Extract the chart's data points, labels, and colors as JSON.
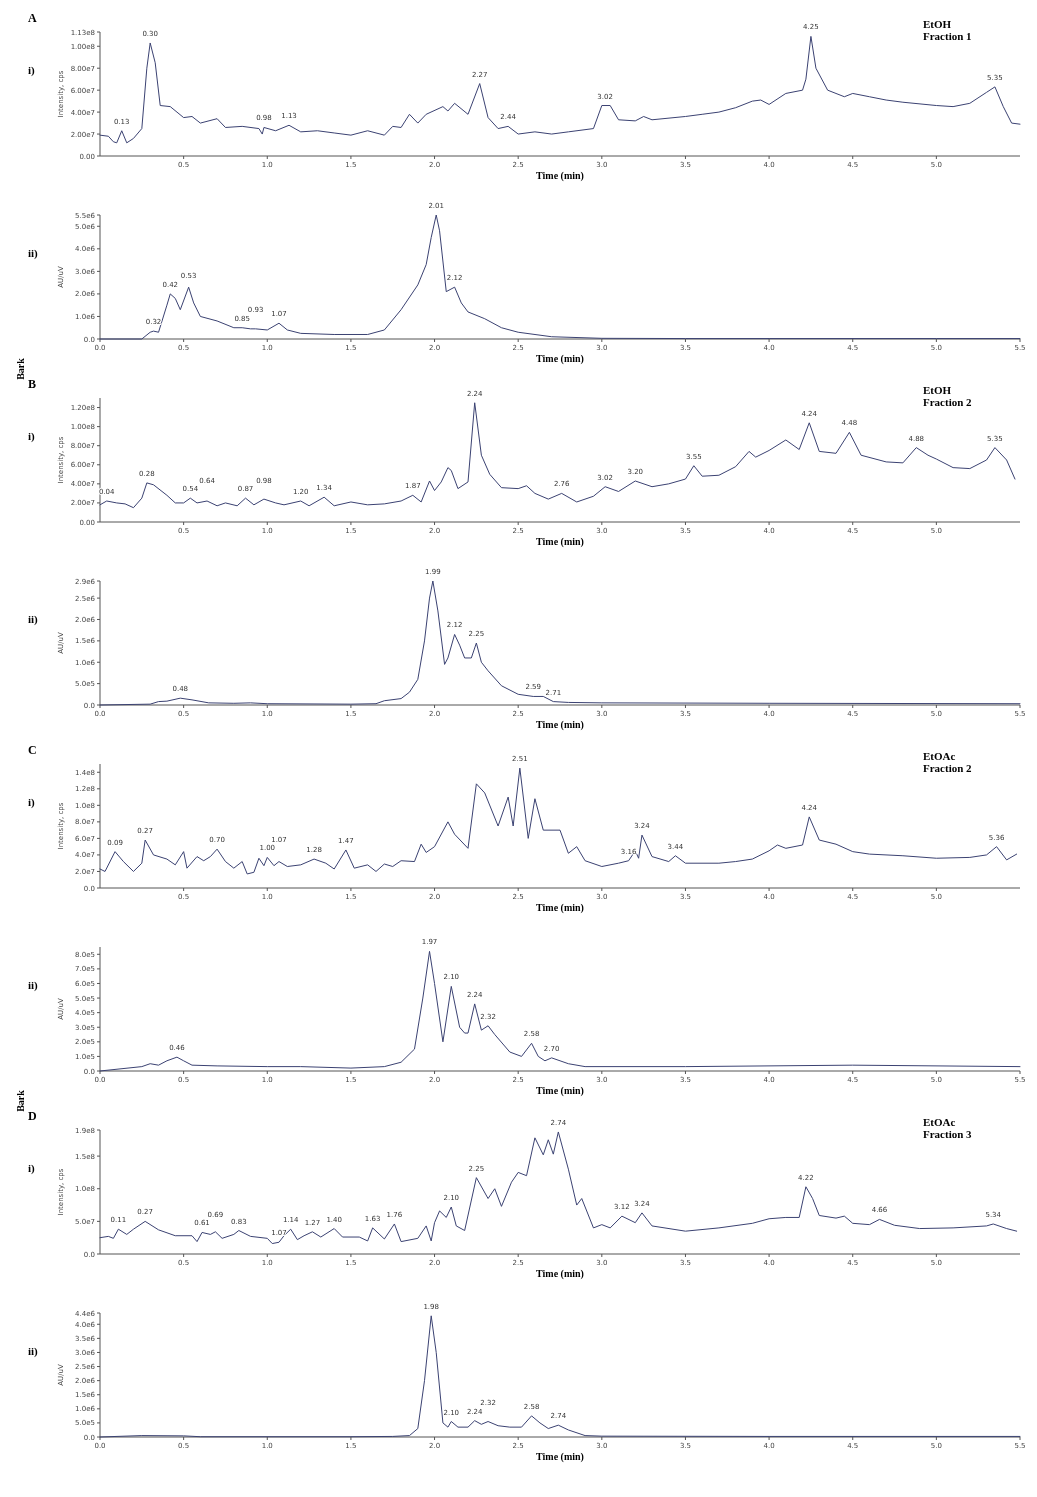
{
  "chart_data": [
    {
      "type": "line",
      "title": "A",
      "subtitle": "EtOH\nFraction 1",
      "xlabel": "Time (min)",
      "ylabel": "Intensity, cps",
      "color": "#3b4272",
      "xlim": [
        0,
        5.5
      ],
      "ylim": [
        0,
        113000000.0
      ],
      "xticks": [
        0.5,
        {
          "value": 1,
          "label": "1.0"
        },
        1.5,
        {
          "value": 2,
          "label": "2.0"
        },
        2.5,
        {
          "value": 3,
          "label": "3.0"
        },
        3.5,
        {
          "value": 4,
          "label": "4.0"
        },
        4.5,
        {
          "value": 5,
          "label": "5.0"
        }
      ],
      "yticks": [
        {
          "value": 0,
          "label": "0.00"
        },
        {
          "value": 20000000.0,
          "label": "2.00e7"
        },
        {
          "value": 40000000.0,
          "label": "4.00e7"
        },
        {
          "value": 60000000.0,
          "label": "6.00e7"
        },
        {
          "value": 80000000.0,
          "label": "8.00e7"
        },
        {
          "value": 100000000.0,
          "label": "1.00e8"
        },
        {
          "value": 113000000.0,
          "label": "1.13e8"
        }
      ],
      "x": [
        0,
        0.05,
        0.08,
        0.1,
        0.13,
        0.16,
        0.2,
        0.25,
        0.28,
        0.3,
        0.33,
        0.36,
        0.42,
        0.5,
        0.55,
        0.6,
        0.7,
        0.75,
        0.85,
        0.95,
        0.97,
        0.98,
        1.05,
        1.13,
        1.2,
        1.3,
        1.4,
        1.5,
        1.6,
        1.7,
        1.75,
        1.8,
        1.85,
        1.9,
        1.95,
        2.05,
        2.08,
        2.12,
        2.2,
        2.27,
        2.32,
        2.38,
        2.44,
        2.5,
        2.6,
        2.7,
        2.8,
        2.95,
        3.0,
        3.05,
        3.1,
        3.2,
        3.25,
        3.3,
        3.5,
        3.6,
        3.7,
        3.8,
        3.9,
        3.95,
        4.0,
        4.1,
        4.2,
        4.22,
        4.25,
        4.28,
        4.35,
        4.45,
        4.5,
        4.6,
        4.7,
        4.8,
        5.0,
        5.1,
        5.2,
        5.3,
        5.35,
        5.4,
        5.45,
        5.5
      ],
      "values": [
        19000000.0,
        18000000.0,
        13000000.0,
        12000000.0,
        23000000.0,
        12000000.0,
        16000000.0,
        25000000.0,
        80000000.0,
        103000000.0,
        85000000.0,
        46000000.0,
        45000000.0,
        35000000.0,
        36000000.0,
        30000000.0,
        34000000.0,
        26000000.0,
        27000000.0,
        25000000.0,
        20000000.0,
        26000000.0,
        23000000.0,
        28000000.0,
        22000000.0,
        23000000.0,
        21000000.0,
        19000000.0,
        23000000.0,
        19000000.0,
        27000000.0,
        26000000.0,
        38000000.0,
        30000000.0,
        38000000.0,
        45000000.0,
        41000000.0,
        48000000.0,
        38000000.0,
        66000000.0,
        35000000.0,
        25000000.0,
        27000000.0,
        20000000.0,
        22000000.0,
        20000000.0,
        22000000.0,
        25000000.0,
        46000000.0,
        46000000.0,
        33000000.0,
        32000000.0,
        36000000.0,
        33000000.0,
        36000000.0,
        38000000.0,
        40000000.0,
        44000000.0,
        50000000.0,
        51000000.0,
        47000000.0,
        57000000.0,
        60000000.0,
        70000000.0,
        109000000.0,
        80000000.0,
        60000000.0,
        54000000.0,
        57000000.0,
        54000000.0,
        51000000.0,
        49000000.0,
        46000000.0,
        45000000.0,
        48000000.0,
        58000000.0,
        63000000.0,
        45000000.0,
        30000000.0,
        29000000.0
      ],
      "annotations": [
        "i)",
        {
          "text": "0.13",
          "x": 0.13,
          "y": 23000000.0
        },
        {
          "text": "0.30",
          "x": 0.3,
          "y": 103000000.0
        },
        {
          "text": "0.98",
          "x": 0.98,
          "y": 26000000.0
        },
        {
          "text": "1.13",
          "x": 1.13,
          "y": 28000000.0
        },
        {
          "text": "2.27",
          "x": 2.27,
          "y": 66000000.0
        },
        {
          "text": "2.44",
          "x": 2.44,
          "y": 27000000.0
        },
        {
          "text": "3.02",
          "x": 3.02,
          "y": 46000000.0
        },
        {
          "text": "4.25",
          "x": 4.25,
          "y": 109000000.0
        },
        {
          "text": "5.35",
          "x": 5.35,
          "y": 63000000.0
        }
      ]
    },
    {
      "type": "line",
      "xlabel": "Time (min)",
      "ylabel": "AU/uV",
      "color": "#3b4272",
      "xlim": [
        0,
        5.5
      ],
      "ylim": [
        0,
        5500000.0
      ],
      "xticks": [
        {
          "value": 0,
          "label": "0.0"
        },
        0.5,
        {
          "value": 1,
          "label": "1.0"
        },
        1.5,
        {
          "value": 2,
          "label": "2.0"
        },
        2.5,
        {
          "value": 3,
          "label": "3.0"
        },
        3.5,
        {
          "value": 4,
          "label": "4.0"
        },
        4.5,
        {
          "value": 5,
          "label": "5.0"
        },
        5.5
      ],
      "yticks": [
        {
          "value": 0,
          "label": "0.0"
        },
        {
          "value": 1000000.0,
          "label": "1.0e6"
        },
        {
          "value": 2000000.0,
          "label": "2.0e6"
        },
        {
          "value": 3000000.0,
          "label": "3.0e6"
        },
        {
          "value": 4000000.0,
          "label": "4.0e6"
        },
        {
          "value": 5000000.0,
          "label": "5.0e6"
        },
        {
          "value": 5500000.0,
          "label": "5.5e6"
        }
      ],
      "x": [
        0,
        0.25,
        0.3,
        0.32,
        0.35,
        0.4,
        0.42,
        0.45,
        0.48,
        0.53,
        0.56,
        0.6,
        0.7,
        0.8,
        0.85,
        0.9,
        0.93,
        1.0,
        1.07,
        1.12,
        1.2,
        1.4,
        1.6,
        1.7,
        1.8,
        1.9,
        1.95,
        1.98,
        2.01,
        2.03,
        2.07,
        2.12,
        2.16,
        2.2,
        2.3,
        2.4,
        2.5,
        2.7,
        3.0,
        3.5,
        4.0,
        5.0,
        5.5
      ],
      "values": [
        0,
        0,
        300000.0,
        350000.0,
        300000.0,
        1500000.0,
        2000000.0,
        1800000.0,
        1300000.0,
        2300000.0,
        1600000.0,
        1000000.0,
        800000.0,
        500000.0,
        500000.0,
        450000.0,
        450000.0,
        400000.0,
        700000.0,
        400000.0,
        250000.0,
        200000.0,
        200000.0,
        400000.0,
        1300000.0,
        2400000.0,
        3300000.0,
        4500000.0,
        5500000.0,
        4800000.0,
        2100000.0,
        2300000.0,
        1600000.0,
        1200000.0,
        900000.0,
        500000.0,
        300000.0,
        100000.0,
        30000.0,
        20000.0,
        20000.0,
        20000.0,
        20000.0
      ],
      "annotations": [
        "ii)",
        "Bark",
        {
          "text": "0.32",
          "x": 0.32,
          "y": 350000.0
        },
        {
          "text": "0.42",
          "x": 0.42,
          "y": 2000000.0
        },
        {
          "text": "0.53",
          "x": 0.53,
          "y": 2300000.0
        },
        {
          "text": "0.85",
          "x": 0.85,
          "y": 500000.0
        },
        {
          "text": "0.93",
          "x": 0.93,
          "y": 450000.0
        },
        {
          "text": "1.07",
          "x": 1.07,
          "y": 700000.0
        },
        {
          "text": "2.01",
          "x": 2.01,
          "y": 5500000.0
        },
        {
          "text": "2.12",
          "x": 2.12,
          "y": 2300000.0
        }
      ]
    },
    {
      "type": "line",
      "title": "B",
      "subtitle": "EtOH\nFraction 2",
      "xlabel": "Time (min)",
      "ylabel": "Intensity, cps",
      "color": "#3b4272",
      "xlim": [
        0,
        5.5
      ],
      "ylim": [
        0,
        130000000.0
      ],
      "xticks": [
        0.5,
        {
          "value": 1,
          "label": "1.0"
        },
        1.5,
        {
          "value": 2,
          "label": "2.0"
        },
        2.5,
        {
          "value": 3,
          "label": "3.0"
        },
        3.5,
        {
          "value": 4,
          "label": "4.0"
        },
        4.5,
        {
          "value": 5,
          "label": "5.0"
        }
      ],
      "yticks": [
        {
          "value": 0,
          "label": "0.00"
        },
        {
          "value": 20000000.0,
          "label": "2.00e7"
        },
        {
          "value": 40000000.0,
          "label": "4.00e7"
        },
        {
          "value": 60000000.0,
          "label": "6.00e7"
        },
        {
          "value": 80000000.0,
          "label": "8.00e7"
        },
        {
          "value": 100000000.0,
          "label": "1.00e8"
        },
        {
          "value": 120000000.0,
          "label": "1.20e8"
        }
      ],
      "x": [
        0,
        0.04,
        0.1,
        0.15,
        0.2,
        0.25,
        0.28,
        0.32,
        0.4,
        0.45,
        0.5,
        0.54,
        0.58,
        0.64,
        0.7,
        0.75,
        0.82,
        0.87,
        0.92,
        0.98,
        1.05,
        1.1,
        1.2,
        1.25,
        1.34,
        1.4,
        1.5,
        1.6,
        1.7,
        1.8,
        1.87,
        1.92,
        1.97,
        2.0,
        2.04,
        2.08,
        2.1,
        2.14,
        2.2,
        2.24,
        2.28,
        2.33,
        2.4,
        2.5,
        2.55,
        2.6,
        2.68,
        2.76,
        2.85,
        2.95,
        3.02,
        3.1,
        3.2,
        3.3,
        3.4,
        3.5,
        3.55,
        3.6,
        3.7,
        3.8,
        3.88,
        3.92,
        4.0,
        4.1,
        4.18,
        4.24,
        4.3,
        4.4,
        4.48,
        4.55,
        4.7,
        4.8,
        4.88,
        4.95,
        5.0,
        5.1,
        5.2,
        5.3,
        5.35,
        5.42,
        5.47
      ],
      "values": [
        18000000.0,
        22000000.0,
        20000000.0,
        19000000.0,
        15000000.0,
        25000000.0,
        41000000.0,
        39000000.0,
        28000000.0,
        20000000.0,
        20000000.0,
        25000000.0,
        20000000.0,
        22000000.0,
        17000000.0,
        20000000.0,
        17000000.0,
        25000000.0,
        18000000.0,
        24000000.0,
        20000000.0,
        18000000.0,
        22000000.0,
        17000000.0,
        26000000.0,
        17000000.0,
        21000000.0,
        18000000.0,
        19000000.0,
        22000000.0,
        28000000.0,
        21000000.0,
        43000000.0,
        33000000.0,
        42000000.0,
        57000000.0,
        54000000.0,
        35000000.0,
        42000000.0,
        125000000.0,
        70000000.0,
        50000000.0,
        36000000.0,
        35000000.0,
        38000000.0,
        30000000.0,
        24000000.0,
        30000000.0,
        21000000.0,
        27000000.0,
        37000000.0,
        32000000.0,
        43000000.0,
        37000000.0,
        40000000.0,
        45000000.0,
        59000000.0,
        48000000.0,
        49000000.0,
        58000000.0,
        74000000.0,
        68000000.0,
        75000000.0,
        86000000.0,
        76000000.0,
        104000000.0,
        74000000.0,
        72000000.0,
        94000000.0,
        70000000.0,
        63000000.0,
        62000000.0,
        78000000.0,
        70000000.0,
        66000000.0,
        57000000.0,
        56000000.0,
        65000000.0,
        78000000.0,
        65000000.0,
        45000000.0
      ],
      "annotations": [
        "i)",
        {
          "text": "0.04",
          "x": 0.04,
          "y": 22000000.0
        },
        {
          "text": "0.28",
          "x": 0.28,
          "y": 41000000.0
        },
        {
          "text": "0.54",
          "x": 0.54,
          "y": 25000000.0
        },
        {
          "text": "0.64",
          "x": 0.64,
          "y": 22000000.0
        },
        {
          "text": "0.87",
          "x": 0.87,
          "y": 25000000.0
        },
        {
          "text": "0.98",
          "x": 0.98,
          "y": 24000000.0
        },
        {
          "text": "1.20",
          "x": 1.2,
          "y": 22000000.0
        },
        {
          "text": "1.34",
          "x": 1.34,
          "y": 26000000.0
        },
        {
          "text": "1.87",
          "x": 1.87,
          "y": 28000000.0
        },
        {
          "text": "2.24",
          "x": 2.24,
          "y": 125000000.0
        },
        {
          "text": "2.76",
          "x": 2.76,
          "y": 30000000.0
        },
        {
          "text": "3.02",
          "x": 3.02,
          "y": 37000000.0
        },
        {
          "text": "3.20",
          "x": 3.2,
          "y": 43000000.0
        },
        {
          "text": "3.55",
          "x": 3.55,
          "y": 59000000.0
        },
        {
          "text": "4.24",
          "x": 4.24,
          "y": 104000000.0
        },
        {
          "text": "4.48",
          "x": 4.48,
          "y": 94000000.0
        },
        {
          "text": "4.88",
          "x": 4.88,
          "y": 78000000.0
        },
        {
          "text": "5.35",
          "x": 5.35,
          "y": 78000000.0
        }
      ]
    },
    {
      "type": "line",
      "xlabel": "Time (min)",
      "ylabel": "AU/uV",
      "color": "#3b4272",
      "xlim": [
        0,
        5.5
      ],
      "ylim": [
        0,
        2900000.0
      ],
      "xticks": [
        {
          "value": 0,
          "label": "0.0"
        },
        0.5,
        {
          "value": 1,
          "label": "1.0"
        },
        1.5,
        {
          "value": 2,
          "label": "2.0"
        },
        2.5,
        {
          "value": 3,
          "label": "3.0"
        },
        3.5,
        {
          "value": 4,
          "label": "4.0"
        },
        4.5,
        {
          "value": 5,
          "label": "5.0"
        },
        5.5
      ],
      "yticks": [
        {
          "value": 0,
          "label": "0.0"
        },
        {
          "value": 500000.0,
          "label": "5.0e5"
        },
        {
          "value": 1000000.0,
          "label": "1.0e6"
        },
        {
          "value": 1500000.0,
          "label": "1.5e6"
        },
        {
          "value": 2000000.0,
          "label": "2.0e6"
        },
        {
          "value": 2500000.0,
          "label": "2.5e6"
        },
        {
          "value": 2900000.0,
          "label": "2.9e6"
        }
      ],
      "x": [
        0,
        0.3,
        0.35,
        0.4,
        0.48,
        0.55,
        0.65,
        0.8,
        0.9,
        1.0,
        1.5,
        1.65,
        1.7,
        1.8,
        1.85,
        1.9,
        1.94,
        1.97,
        1.99,
        2.02,
        2.06,
        2.08,
        2.12,
        2.15,
        2.18,
        2.22,
        2.25,
        2.28,
        2.32,
        2.4,
        2.5,
        2.59,
        2.65,
        2.71,
        2.8,
        3.0,
        4.0,
        5.5
      ],
      "values": [
        0,
        20000.0,
        80000.0,
        90000.0,
        160000.0,
        120000.0,
        50000.0,
        40000.0,
        50000.0,
        30000.0,
        20000.0,
        30000.0,
        100000.0,
        150000.0,
        300000.0,
        600000.0,
        1500000.0,
        2500000.0,
        2900000.0,
        2200000.0,
        950000.0,
        1100000.0,
        1650000.0,
        1400000.0,
        1100000.0,
        1100000.0,
        1450000.0,
        1000000.0,
        800000.0,
        450000.0,
        250000.0,
        200000.0,
        200000.0,
        80000.0,
        60000.0,
        50000.0,
        40000.0,
        30000.0
      ],
      "annotations": [
        "ii)",
        {
          "text": "0.48",
          "x": 0.48,
          "y": 160000.0
        },
        {
          "text": "1.99",
          "x": 1.99,
          "y": 2900000.0
        },
        {
          "text": "2.12",
          "x": 2.12,
          "y": 1650000.0
        },
        {
          "text": "2.25",
          "x": 2.25,
          "y": 1450000.0
        },
        {
          "text": "2.59",
          "x": 2.59,
          "y": 200000.0
        },
        {
          "text": "2.71",
          "x": 2.71,
          "y": 80000.0
        }
      ]
    },
    {
      "type": "line",
      "title": "C",
      "subtitle": "EtOAc\nFraction 2",
      "xlabel": "Time (min)",
      "ylabel": "Intensity, cps",
      "color": "#3b4272",
      "xlim": [
        0,
        5.5
      ],
      "ylim": [
        0,
        150000000.0
      ],
      "xticks": [
        0.5,
        {
          "value": 1,
          "label": "1.0"
        },
        1.5,
        {
          "value": 2,
          "label": "2.0"
        },
        2.5,
        {
          "value": 3,
          "label": "3.0"
        },
        3.5,
        {
          "value": 4,
          "label": "4.0"
        },
        4.5,
        {
          "value": 5,
          "label": "5.0"
        }
      ],
      "yticks": [
        {
          "value": 0,
          "label": "0.0"
        },
        {
          "value": 20000000.0,
          "label": "2.0e7"
        },
        {
          "value": 40000000.0,
          "label": "4.0e7"
        },
        {
          "value": 60000000.0,
          "label": "6.0e7"
        },
        {
          "value": 80000000.0,
          "label": "8.0e7"
        },
        {
          "value": 100000000.0,
          "label": "1.0e8"
        },
        {
          "value": 120000000.0,
          "label": "1.2e8"
        },
        {
          "value": 140000000.0,
          "label": "1.4e8"
        }
      ],
      "x": [
        0,
        0.03,
        0.09,
        0.14,
        0.2,
        0.25,
        0.27,
        0.32,
        0.4,
        0.45,
        0.5,
        0.52,
        0.58,
        0.62,
        0.66,
        0.7,
        0.75,
        0.8,
        0.85,
        0.88,
        0.92,
        0.95,
        0.98,
        1.0,
        1.04,
        1.07,
        1.12,
        1.2,
        1.28,
        1.35,
        1.4,
        1.47,
        1.52,
        1.6,
        1.65,
        1.7,
        1.75,
        1.8,
        1.88,
        1.92,
        1.95,
        2.0,
        2.08,
        2.12,
        2.2,
        2.25,
        2.3,
        2.38,
        2.44,
        2.47,
        2.51,
        2.56,
        2.6,
        2.65,
        2.75,
        2.8,
        2.85,
        2.9,
        3.0,
        3.1,
        3.16,
        3.2,
        3.22,
        3.24,
        3.3,
        3.4,
        3.44,
        3.5,
        3.7,
        3.8,
        3.9,
        4.0,
        4.05,
        4.1,
        4.2,
        4.24,
        4.3,
        4.4,
        4.5,
        4.6,
        4.8,
        5.0,
        5.2,
        5.3,
        5.36,
        5.42,
        5.48
      ],
      "values": [
        23000000.0,
        20000000.0,
        44000000.0,
        32000000.0,
        20000000.0,
        30000000.0,
        58000000.0,
        40000000.0,
        35000000.0,
        28000000.0,
        44000000.0,
        24000000.0,
        38000000.0,
        33000000.0,
        38000000.0,
        47000000.0,
        32000000.0,
        24000000.0,
        32000000.0,
        17000000.0,
        19000000.0,
        36000000.0,
        27000000.0,
        37000000.0,
        27000000.0,
        32000000.0,
        26000000.0,
        28000000.0,
        35000000.0,
        30000000.0,
        23000000.0,
        46000000.0,
        24000000.0,
        28000000.0,
        20000000.0,
        29000000.0,
        26000000.0,
        33000000.0,
        32000000.0,
        53000000.0,
        43000000.0,
        50000000.0,
        80000000.0,
        65000000.0,
        48000000.0,
        126000000.0,
        115000000.0,
        75000000.0,
        110000000.0,
        75000000.0,
        145000000.0,
        60000000.0,
        108000000.0,
        70000000.0,
        70000000.0,
        42000000.0,
        50000000.0,
        33000000.0,
        26000000.0,
        30000000.0,
        33000000.0,
        45000000.0,
        36000000.0,
        64000000.0,
        38000000.0,
        32000000.0,
        39000000.0,
        30000000.0,
        30000000.0,
        32000000.0,
        35000000.0,
        45000000.0,
        52000000.0,
        48000000.0,
        52000000.0,
        86000000.0,
        58000000.0,
        53000000.0,
        44000000.0,
        41000000.0,
        39000000.0,
        36000000.0,
        37000000.0,
        40000000.0,
        50000000.0,
        34000000.0,
        41000000.0
      ],
      "annotations": [
        "i)",
        {
          "text": "0.09",
          "x": 0.09,
          "y": 44000000.0
        },
        {
          "text": "0.27",
          "x": 0.27,
          "y": 58000000.0
        },
        {
          "text": "0.70",
          "x": 0.7,
          "y": 47000000.0
        },
        {
          "text": "1.00",
          "x": 1.0,
          "y": 37000000.0
        },
        {
          "text": "1.07",
          "x": 1.07,
          "y": 32000000.0
        },
        {
          "text": "1.28",
          "x": 1.28,
          "y": 35000000.0
        },
        {
          "text": "1.47",
          "x": 1.47,
          "y": 46000000.0
        },
        {
          "text": "2.51",
          "x": 2.51,
          "y": 145000000.0
        },
        {
          "text": "3.16",
          "x": 3.16,
          "y": 33000000.0
        },
        {
          "text": "3.24",
          "x": 3.24,
          "y": 64000000.0
        },
        {
          "text": "3.44",
          "x": 3.44,
          "y": 39000000.0
        },
        {
          "text": "4.24",
          "x": 4.24,
          "y": 86000000.0
        },
        {
          "text": "5.36",
          "x": 5.36,
          "y": 50000000.0
        }
      ]
    },
    {
      "type": "line",
      "xlabel": "Time (min)",
      "ylabel": "AU/uV",
      "color": "#3b4272",
      "xlim": [
        0,
        5.5
      ],
      "ylim": [
        0,
        850000.0
      ],
      "xticks": [
        {
          "value": 0,
          "label": "0.0"
        },
        0.5,
        {
          "value": 1,
          "label": "1.0"
        },
        1.5,
        {
          "value": 2,
          "label": "2.0"
        },
        2.5,
        {
          "value": 3,
          "label": "3.0"
        },
        3.5,
        {
          "value": 4,
          "label": "4.0"
        },
        4.5,
        {
          "value": 5,
          "label": "5.0"
        },
        5.5
      ],
      "yticks": [
        {
          "value": 0,
          "label": "0.0"
        },
        {
          "value": 100000.0,
          "label": "1.0e5"
        },
        {
          "value": 200000.0,
          "label": "2.0e5"
        },
        {
          "value": 300000.0,
          "label": "3.0e5"
        },
        {
          "value": 400000.0,
          "label": "4.0e5"
        },
        {
          "value": 500000.0,
          "label": "5.0e5"
        },
        {
          "value": 600000.0,
          "label": "6.0e5"
        },
        {
          "value": 700000.0,
          "label": "7.0e5"
        },
        {
          "value": 800000.0,
          "label": "8.0e5"
        }
      ],
      "x": [
        0,
        0.25,
        0.3,
        0.35,
        0.4,
        0.46,
        0.5,
        0.55,
        0.7,
        1.0,
        1.2,
        1.5,
        1.7,
        1.8,
        1.88,
        1.93,
        1.97,
        2.0,
        2.05,
        2.1,
        2.15,
        2.18,
        2.2,
        2.24,
        2.28,
        2.32,
        2.36,
        2.45,
        2.52,
        2.58,
        2.62,
        2.66,
        2.7,
        2.8,
        2.9,
        3.5,
        4.5,
        5.5
      ],
      "values": [
        0,
        30000.0,
        50000.0,
        40000.0,
        70000.0,
        95000.0,
        70000.0,
        40000.0,
        35000.0,
        30000.0,
        30000.0,
        20000.0,
        30000.0,
        60000.0,
        150000.0,
        500000.0,
        820000.0,
        600000.0,
        200000.0,
        580000.0,
        300000.0,
        260000.0,
        260000.0,
        460000.0,
        280000.0,
        310000.0,
        250000.0,
        130000.0,
        100000.0,
        190000.0,
        100000.0,
        70000.0,
        90000.0,
        50000.0,
        30000.0,
        30000.0,
        40000.0,
        30000.0
      ],
      "annotations": [
        "ii)",
        "Bark",
        {
          "text": "0.46",
          "x": 0.46,
          "y": 95000.0
        },
        {
          "text": "1.97",
          "x": 1.97,
          "y": 820000.0
        },
        {
          "text": "2.10",
          "x": 2.1,
          "y": 580000.0
        },
        {
          "text": "2.24",
          "x": 2.24,
          "y": 460000.0
        },
        {
          "text": "2.32",
          "x": 2.32,
          "y": 310000.0
        },
        {
          "text": "2.58",
          "x": 2.58,
          "y": 190000.0
        },
        {
          "text": "2.70",
          "x": 2.7,
          "y": 90000.0
        }
      ]
    },
    {
      "type": "line",
      "title": "D",
      "subtitle": "EtOAc\nFraction 3",
      "xlabel": "Time (min)",
      "ylabel": "Intensity, cps",
      "color": "#3b4272",
      "xlim": [
        0,
        5.5
      ],
      "ylim": [
        0,
        190000000.0
      ],
      "xticks": [
        0.5,
        {
          "value": 1,
          "label": "1.0"
        },
        1.5,
        {
          "value": 2,
          "label": "2.0"
        },
        2.5,
        {
          "value": 3,
          "label": "3.0"
        },
        3.5,
        {
          "value": 4,
          "label": "4.0"
        },
        4.5,
        {
          "value": 5,
          "label": "5.0"
        }
      ],
      "yticks": [
        {
          "value": 0,
          "label": "0.0"
        },
        {
          "value": 50000000.0,
          "label": "5.0e7"
        },
        {
          "value": 100000000.0,
          "label": "1.0e8"
        },
        {
          "value": 150000000.0,
          "label": "1.5e8"
        },
        {
          "value": 190000000.0,
          "label": "1.9e8"
        }
      ],
      "x": [
        0,
        0.05,
        0.08,
        0.11,
        0.16,
        0.2,
        0.27,
        0.35,
        0.45,
        0.55,
        0.58,
        0.61,
        0.66,
        0.69,
        0.73,
        0.8,
        0.83,
        0.9,
        1.0,
        1.03,
        1.07,
        1.1,
        1.14,
        1.18,
        1.22,
        1.27,
        1.32,
        1.4,
        1.45,
        1.55,
        1.6,
        1.63,
        1.7,
        1.76,
        1.8,
        1.9,
        1.95,
        1.98,
        2.0,
        2.03,
        2.07,
        2.1,
        2.13,
        2.18,
        2.25,
        2.32,
        2.36,
        2.4,
        2.46,
        2.5,
        2.55,
        2.6,
        2.65,
        2.68,
        2.71,
        2.74,
        2.8,
        2.85,
        2.88,
        2.95,
        3.0,
        3.05,
        3.12,
        3.2,
        3.24,
        3.3,
        3.5,
        3.7,
        3.9,
        4.0,
        4.1,
        4.18,
        4.22,
        4.26,
        4.3,
        4.4,
        4.45,
        4.5,
        4.6,
        4.66,
        4.75,
        4.9,
        5.1,
        5.3,
        5.34,
        5.42,
        5.48
      ],
      "values": [
        25000000.0,
        27000000.0,
        24000000.0,
        38000000.0,
        30000000.0,
        38000000.0,
        50000000.0,
        37000000.0,
        28000000.0,
        28000000.0,
        19000000.0,
        33000000.0,
        30000000.0,
        34000000.0,
        24000000.0,
        30000000.0,
        36000000.0,
        27000000.0,
        24000000.0,
        16000000.0,
        18000000.0,
        28000000.0,
        38000000.0,
        22000000.0,
        28000000.0,
        34000000.0,
        26000000.0,
        39000000.0,
        26000000.0,
        26000000.0,
        20000000.0,
        40000000.0,
        23000000.0,
        46000000.0,
        19000000.0,
        24000000.0,
        43000000.0,
        20000000.0,
        48000000.0,
        66000000.0,
        56000000.0,
        72000000.0,
        43000000.0,
        36000000.0,
        117000000.0,
        85000000.0,
        100000000.0,
        73000000.0,
        110000000.0,
        125000000.0,
        120000000.0,
        178000000.0,
        152000000.0,
        175000000.0,
        153000000.0,
        187000000.0,
        130000000.0,
        75000000.0,
        85000000.0,
        40000000.0,
        45000000.0,
        40000000.0,
        58000000.0,
        48000000.0,
        63000000.0,
        43000000.0,
        35000000.0,
        40000000.0,
        47000000.0,
        54000000.0,
        56000000.0,
        56000000.0,
        103000000.0,
        85000000.0,
        59000000.0,
        55000000.0,
        58000000.0,
        47000000.0,
        45000000.0,
        53000000.0,
        44000000.0,
        39000000.0,
        40000000.0,
        43000000.0,
        46000000.0,
        39000000.0,
        35000000.0
      ],
      "annotations": [
        "i)",
        {
          "text": "0.11",
          "x": 0.11,
          "y": 38000000.0
        },
        {
          "text": "0.27",
          "x": 0.27,
          "y": 50000000.0
        },
        {
          "text": "0.61",
          "x": 0.61,
          "y": 33000000.0
        },
        {
          "text": "0.69",
          "x": 0.69,
          "y": 34000000.0
        },
        {
          "text": "0.83",
          "x": 0.83,
          "y": 36000000.0
        },
        {
          "text": "1.07",
          "x": 1.07,
          "y": 18000000.0
        },
        {
          "text": "1.14",
          "x": 1.14,
          "y": 38000000.0
        },
        {
          "text": "1.27",
          "x": 1.27,
          "y": 34000000.0
        },
        {
          "text": "1.40",
          "x": 1.4,
          "y": 39000000.0
        },
        {
          "text": "1.63",
          "x": 1.63,
          "y": 40000000.0
        },
        {
          "text": "1.76",
          "x": 1.76,
          "y": 46000000.0
        },
        {
          "text": "2.10",
          "x": 2.1,
          "y": 72000000.0
        },
        {
          "text": "2.25",
          "x": 2.25,
          "y": 117000000.0
        },
        {
          "text": "2.74",
          "x": 2.74,
          "y": 187000000.0
        },
        {
          "text": "3.12",
          "x": 3.12,
          "y": 58000000.0
        },
        {
          "text": "3.24",
          "x": 3.24,
          "y": 63000000.0
        },
        {
          "text": "4.22",
          "x": 4.22,
          "y": 103000000.0
        },
        {
          "text": "4.66",
          "x": 4.66,
          "y": 53000000.0
        },
        {
          "text": "5.34",
          "x": 5.34,
          "y": 46000000.0
        }
      ]
    },
    {
      "type": "line",
      "xlabel": "Time (min)",
      "ylabel": "AU/uV",
      "color": "#3b4272",
      "xlim": [
        0,
        5.5
      ],
      "ylim": [
        0,
        4400000.0
      ],
      "xticks": [
        {
          "value": 0,
          "label": "0.0"
        },
        0.5,
        {
          "value": 1,
          "label": "1.0"
        },
        1.5,
        {
          "value": 2,
          "label": "2.0"
        },
        2.5,
        {
          "value": 3,
          "label": "3.0"
        },
        3.5,
        {
          "value": 4,
          "label": "4.0"
        },
        4.5,
        {
          "value": 5,
          "label": "5.0"
        },
        5.5
      ],
      "yticks": [
        {
          "value": 0,
          "label": "0.0"
        },
        {
          "value": 500000.0,
          "label": "5.0e5"
        },
        {
          "value": 1000000.0,
          "label": "1.0e6"
        },
        {
          "value": 1500000.0,
          "label": "1.5e6"
        },
        {
          "value": 2000000.0,
          "label": "2.0e6"
        },
        {
          "value": 2500000.0,
          "label": "2.5e6"
        },
        {
          "value": 3000000.0,
          "label": "3.0e6"
        },
        {
          "value": 3500000.0,
          "label": "3.5e6"
        },
        {
          "value": 4000000.0,
          "label": "4.0e6"
        },
        {
          "value": 4400000.0,
          "label": "4.4e6"
        }
      ],
      "x": [
        0,
        0.25,
        0.5,
        0.6,
        1.5,
        1.75,
        1.85,
        1.9,
        1.94,
        1.98,
        2.01,
        2.05,
        2.08,
        2.1,
        2.14,
        2.2,
        2.24,
        2.28,
        2.32,
        2.38,
        2.45,
        2.52,
        2.58,
        2.63,
        2.68,
        2.74,
        2.8,
        2.9,
        3.0,
        4.0,
        5.5
      ],
      "values": [
        0,
        50000.0,
        40000.0,
        10000.0,
        10000.0,
        20000.0,
        50000.0,
        300000.0,
        2000000.0,
        4300000.0,
        3000000.0,
        500000.0,
        350000.0,
        550000.0,
        350000.0,
        350000.0,
        580000.0,
        450000.0,
        550000.0,
        400000.0,
        350000.0,
        350000.0,
        750000.0,
        500000.0,
        300000.0,
        420000.0,
        250000.0,
        50000.0,
        30000.0,
        20000.0,
        20000.0
      ],
      "annotations": [
        "ii)",
        {
          "text": "1.98",
          "x": 1.98,
          "y": 4300000.0
        },
        {
          "text": "2.10",
          "x": 2.1,
          "y": 550000.0
        },
        {
          "text": "2.24",
          "x": 2.24,
          "y": 580000.0
        },
        {
          "text": "2.32",
          "x": 2.32,
          "y": 550000.0
        },
        {
          "text": "2.58",
          "x": 2.58,
          "y": 750000.0
        },
        {
          "text": "2.74",
          "x": 2.74,
          "y": 420000.0
        }
      ]
    }
  ]
}
